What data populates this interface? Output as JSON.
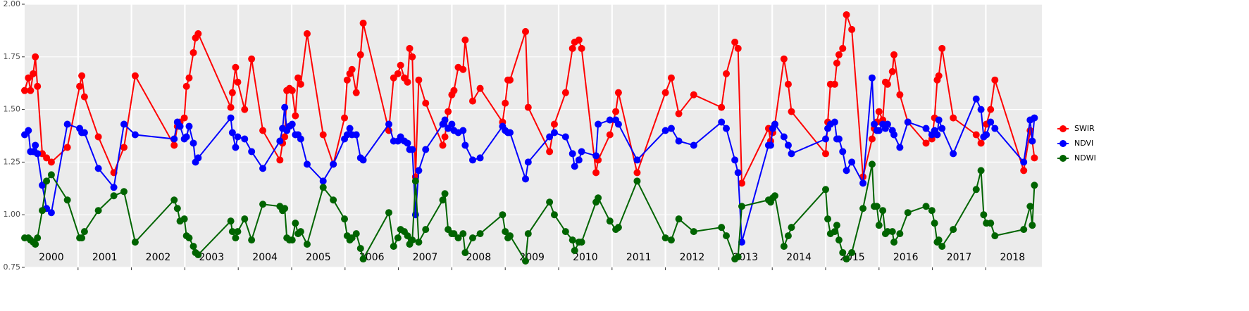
{
  "chart_data": {
    "type": "line",
    "x": [
      2000.0,
      2000.07,
      2000.11,
      2000.16,
      2000.2,
      2000.24,
      2000.33,
      2000.41,
      2000.5,
      2000.8,
      2001.03,
      2001.07,
      2001.12,
      2001.38,
      2001.67,
      2001.86,
      2002.07,
      2002.8,
      2002.86,
      2002.91,
      2002.99,
      2003.03,
      2003.08,
      2003.16,
      2003.2,
      2003.25,
      2003.86,
      2003.89,
      2003.95,
      2003.99,
      2004.12,
      2004.25,
      2004.46,
      2004.78,
      2004.83,
      2004.87,
      2004.91,
      2004.96,
      2005.01,
      2005.07,
      2005.12,
      2005.17,
      2005.29,
      2005.59,
      2005.78,
      2005.99,
      2006.04,
      2006.09,
      2006.13,
      2006.21,
      2006.29,
      2006.34,
      2006.82,
      2006.91,
      2006.99,
      2007.04,
      2007.11,
      2007.17,
      2007.21,
      2007.26,
      2007.32,
      2007.38,
      2007.51,
      2007.83,
      2007.87,
      2007.93,
      2008.0,
      2008.04,
      2008.12,
      2008.21,
      2008.25,
      2008.39,
      2008.53,
      2008.95,
      2009.0,
      2009.05,
      2009.09,
      2009.38,
      2009.43,
      2009.83,
      2009.92,
      2010.13,
      2010.26,
      2010.3,
      2010.38,
      2010.43,
      2010.7,
      2010.74,
      2010.96,
      2011.07,
      2011.12,
      2011.47,
      2012.0,
      2012.11,
      2012.25,
      2012.53,
      2013.05,
      2013.14,
      2013.3,
      2013.36,
      2013.43,
      2013.93,
      2013.97,
      2014.01,
      2014.05,
      2014.22,
      2014.3,
      2014.36,
      2015.0,
      2015.04,
      2015.09,
      2015.17,
      2015.21,
      2015.25,
      2015.32,
      2015.39,
      2015.49,
      2015.7,
      2015.87,
      2015.91,
      2015.96,
      2016.0,
      2016.07,
      2016.12,
      2016.16,
      2016.25,
      2016.28,
      2016.39,
      2016.54,
      2016.88,
      2016.99,
      2017.04,
      2017.09,
      2017.12,
      2017.18,
      2017.39,
      2017.82,
      2017.91,
      2017.96,
      2018.01,
      2018.09,
      2018.17,
      2018.71,
      2018.83,
      2018.87,
      2018.91
    ],
    "series": [
      {
        "name": "SWIR",
        "color": "#ff0000",
        "values": [
          1.59,
          1.65,
          1.59,
          1.67,
          1.75,
          1.61,
          1.29,
          1.27,
          1.25,
          1.32,
          1.61,
          1.66,
          1.56,
          1.37,
          1.2,
          1.32,
          1.66,
          1.33,
          1.42,
          1.44,
          1.46,
          1.61,
          1.65,
          1.77,
          1.84,
          1.86,
          1.51,
          1.58,
          1.7,
          1.63,
          1.5,
          1.74,
          1.4,
          1.26,
          1.34,
          1.37,
          1.59,
          1.6,
          1.59,
          1.47,
          1.65,
          1.62,
          1.86,
          1.38,
          1.24,
          1.46,
          1.64,
          1.67,
          1.69,
          1.58,
          1.76,
          1.91,
          1.4,
          1.65,
          1.67,
          1.71,
          1.65,
          1.63,
          1.79,
          1.75,
          1.18,
          1.64,
          1.53,
          1.33,
          1.37,
          1.49,
          1.57,
          1.59,
          1.7,
          1.69,
          1.83,
          1.54,
          1.6,
          1.44,
          1.53,
          1.64,
          1.64,
          1.87,
          1.51,
          1.3,
          1.43,
          1.58,
          1.79,
          1.82,
          1.83,
          1.79,
          1.2,
          1.26,
          1.38,
          1.49,
          1.58,
          1.2,
          1.58,
          1.65,
          1.48,
          1.57,
          1.51,
          1.67,
          1.82,
          1.79,
          1.15,
          1.41,
          1.35,
          1.39,
          1.43,
          1.74,
          1.62,
          1.49,
          1.29,
          1.44,
          1.62,
          1.62,
          1.72,
          1.76,
          1.79,
          1.95,
          1.88,
          1.18,
          1.36,
          1.41,
          1.44,
          1.49,
          1.45,
          1.63,
          1.62,
          1.68,
          1.76,
          1.57,
          1.44,
          1.34,
          1.36,
          1.46,
          1.64,
          1.66,
          1.79,
          1.46,
          1.38,
          1.34,
          1.37,
          1.43,
          1.5,
          1.64,
          1.21,
          1.4,
          1.35,
          1.27
        ]
      },
      {
        "name": "NDVI",
        "color": "#0000ff",
        "values": [
          1.38,
          1.4,
          1.3,
          1.3,
          1.33,
          1.29,
          1.14,
          1.03,
          1.01,
          1.43,
          1.41,
          1.39,
          1.39,
          1.22,
          1.13,
          1.43,
          1.38,
          1.36,
          1.44,
          1.42,
          1.36,
          1.37,
          1.42,
          1.34,
          1.25,
          1.27,
          1.46,
          1.39,
          1.32,
          1.37,
          1.36,
          1.3,
          1.22,
          1.35,
          1.41,
          1.51,
          1.4,
          1.42,
          1.43,
          1.38,
          1.38,
          1.36,
          1.24,
          1.16,
          1.24,
          1.36,
          1.38,
          1.41,
          1.38,
          1.38,
          1.27,
          1.26,
          1.43,
          1.35,
          1.35,
          1.37,
          1.35,
          1.34,
          1.31,
          1.31,
          1.0,
          1.21,
          1.31,
          1.43,
          1.45,
          1.41,
          1.43,
          1.4,
          1.39,
          1.4,
          1.33,
          1.26,
          1.27,
          1.42,
          1.4,
          1.39,
          1.39,
          1.17,
          1.25,
          1.37,
          1.39,
          1.37,
          1.29,
          1.23,
          1.26,
          1.3,
          1.28,
          1.43,
          1.45,
          1.45,
          1.43,
          1.26,
          1.4,
          1.41,
          1.35,
          1.33,
          1.44,
          1.41,
          1.26,
          1.2,
          0.87,
          1.33,
          1.33,
          1.41,
          1.43,
          1.37,
          1.33,
          1.29,
          1.36,
          1.41,
          1.43,
          1.44,
          1.36,
          1.36,
          1.3,
          1.21,
          1.25,
          1.15,
          1.65,
          1.43,
          1.4,
          1.4,
          1.43,
          1.41,
          1.43,
          1.4,
          1.38,
          1.32,
          1.44,
          1.41,
          1.38,
          1.4,
          1.38,
          1.45,
          1.41,
          1.29,
          1.55,
          1.5,
          1.37,
          1.38,
          1.44,
          1.41,
          1.25,
          1.45,
          1.35,
          1.46
        ]
      },
      {
        "name": "NDWI",
        "color": "#006400",
        "values": [
          0.89,
          0.89,
          0.88,
          0.87,
          0.86,
          0.89,
          1.02,
          1.16,
          1.19,
          1.07,
          0.89,
          0.89,
          0.92,
          1.02,
          1.09,
          1.11,
          0.87,
          1.07,
          1.03,
          0.97,
          0.98,
          0.9,
          0.89,
          0.85,
          0.82,
          0.81,
          0.97,
          0.92,
          0.89,
          0.92,
          0.98,
          0.88,
          1.05,
          1.04,
          1.02,
          1.03,
          0.89,
          0.88,
          0.88,
          0.96,
          0.91,
          0.92,
          0.86,
          1.13,
          1.07,
          0.98,
          0.9,
          0.88,
          0.89,
          0.91,
          0.84,
          0.79,
          1.01,
          0.85,
          0.89,
          0.93,
          0.92,
          0.9,
          0.86,
          0.88,
          1.16,
          0.87,
          0.93,
          1.07,
          1.1,
          0.93,
          0.91,
          0.91,
          0.89,
          0.91,
          0.82,
          0.89,
          0.91,
          1.0,
          0.92,
          0.89,
          0.9,
          0.78,
          0.91,
          1.06,
          1.0,
          0.92,
          0.88,
          0.83,
          0.87,
          0.87,
          1.06,
          1.08,
          0.97,
          0.93,
          0.94,
          1.16,
          0.89,
          0.88,
          0.98,
          0.92,
          0.94,
          0.9,
          0.79,
          0.8,
          1.04,
          1.07,
          1.06,
          1.08,
          1.09,
          0.85,
          0.9,
          0.94,
          1.12,
          0.98,
          0.91,
          0.92,
          0.95,
          0.88,
          0.82,
          0.79,
          0.82,
          1.03,
          1.24,
          1.04,
          1.04,
          0.95,
          1.02,
          0.91,
          0.92,
          0.92,
          0.87,
          0.91,
          1.01,
          1.04,
          1.02,
          0.96,
          0.87,
          0.88,
          0.85,
          0.93,
          1.12,
          1.21,
          1.0,
          0.96,
          0.96,
          0.9,
          0.93,
          1.04,
          0.95,
          1.14
        ]
      }
    ],
    "xlim": [
      2000,
      2019.05
    ],
    "xticks": [
      {
        "value": 2000.5,
        "label": "2000"
      },
      {
        "value": 2001.5,
        "label": "2001"
      },
      {
        "value": 2002.5,
        "label": "2002"
      },
      {
        "value": 2003.5,
        "label": "2003"
      },
      {
        "value": 2004.5,
        "label": "2004"
      },
      {
        "value": 2005.5,
        "label": "2005"
      },
      {
        "value": 2006.5,
        "label": "2006"
      },
      {
        "value": 2007.5,
        "label": "2007"
      },
      {
        "value": 2008.5,
        "label": "2008"
      },
      {
        "value": 2009.5,
        "label": "2009"
      },
      {
        "value": 2010.5,
        "label": "2010"
      },
      {
        "value": 2011.5,
        "label": "2011"
      },
      {
        "value": 2012.5,
        "label": "2012"
      },
      {
        "value": 2013.5,
        "label": "2013"
      },
      {
        "value": 2014.5,
        "label": "2014"
      },
      {
        "value": 2015.5,
        "label": "2015"
      },
      {
        "value": 2016.5,
        "label": "2016"
      },
      {
        "value": 2017.5,
        "label": "2017"
      },
      {
        "value": 2018.5,
        "label": "2018"
      }
    ],
    "xgrid": [
      2001,
      2002,
      2003,
      2004,
      2005,
      2006,
      2007,
      2008,
      2009,
      2010,
      2011,
      2012,
      2013,
      2014,
      2015,
      2016,
      2017,
      2018
    ],
    "ylim": [
      0.75,
      2.0
    ],
    "yticks": [
      0.75,
      {
        "value": 1.0,
        "label": "1.00"
      },
      1.25,
      {
        "value": 1.5,
        "label": "1.50"
      },
      1.75,
      {
        "value": 2.0,
        "label": "2.00"
      }
    ],
    "grid": true,
    "legend": "right"
  }
}
